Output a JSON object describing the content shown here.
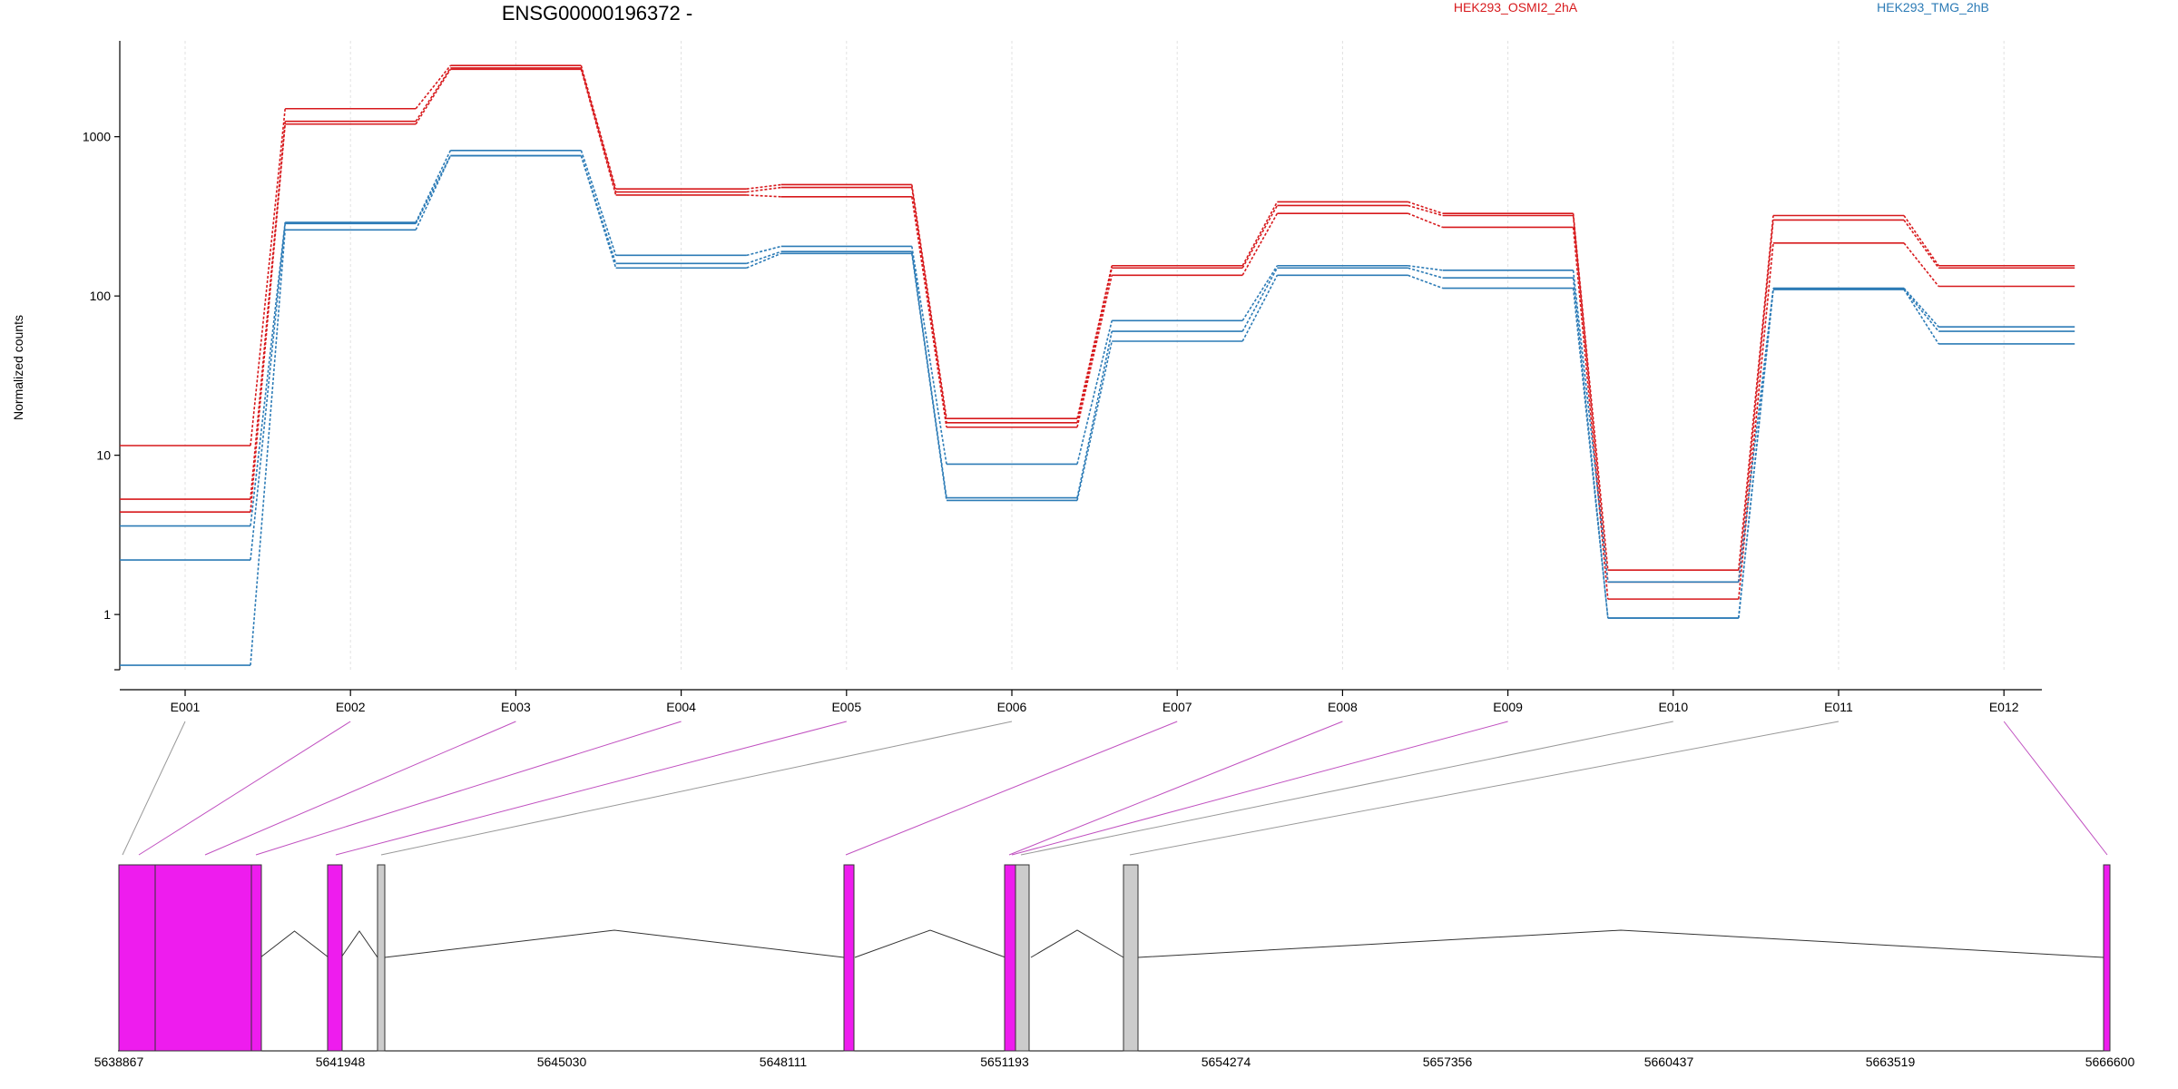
{
  "title": "ENSG00000196372 -",
  "ylabel": "Normalized counts",
  "legend": [
    {
      "label": "HEK293_OSMI2_2hA",
      "color": "#d7191c"
    },
    {
      "label": "HEK293_TMG_2hB",
      "color": "#2c7bb6"
    }
  ],
  "colors": {
    "exon_used": "#ee1cee",
    "exon_other": "#cccccc",
    "connector_used": "#c050c0",
    "connector_other": "#999999",
    "grid": "#e0e0e0"
  },
  "chart_data": {
    "type": "line",
    "scale": "log",
    "y_ticks": [
      1,
      10,
      100,
      1000
    ],
    "y_tick_labels": [
      "1",
      "10",
      "100",
      "1000"
    ],
    "ylim": [
      0.45,
      4000
    ],
    "categories": [
      "E001",
      "E002",
      "E003",
      "E004",
      "E005",
      "E006",
      "E007",
      "E008",
      "E009",
      "E010",
      "E011",
      "E012"
    ],
    "series": [
      {
        "group": "HEK293_OSMI2_2hA",
        "values": [
          11.5,
          1500,
          2800,
          470,
          500,
          17,
          155,
          390,
          330,
          1.9,
          320,
          155
        ]
      },
      {
        "group": "HEK293_OSMI2_2hA",
        "values": [
          5.3,
          1250,
          2700,
          450,
          480,
          16,
          150,
          370,
          320,
          1.6,
          300,
          150
        ]
      },
      {
        "group": "HEK293_OSMI2_2hA",
        "values": [
          4.4,
          1200,
          2650,
          430,
          420,
          15,
          135,
          330,
          270,
          1.25,
          215,
          115
        ]
      },
      {
        "group": "HEK293_TMG_2hB",
        "values": [
          3.6,
          290,
          820,
          180,
          205,
          8.8,
          70,
          155,
          145,
          1.6,
          112,
          64
        ]
      },
      {
        "group": "HEK293_TMG_2hB",
        "values": [
          2.2,
          285,
          760,
          160,
          190,
          5.4,
          60,
          150,
          130,
          0.95,
          110,
          60
        ]
      },
      {
        "group": "HEK293_TMG_2hB",
        "values": [
          0.48,
          260,
          760,
          150,
          185,
          5.2,
          52,
          135,
          112,
          0.95,
          110,
          50
        ]
      }
    ],
    "gene_model": {
      "tick_labels": [
        "5638867",
        "5641948",
        "5645030",
        "5648111",
        "5651193",
        "5654274",
        "5657356",
        "5660437",
        "5663519",
        "5666600"
      ],
      "exon_markers": [
        "",
        "",
        "",
        "",
        "",
        "",
        "",
        "",
        "",
        "",
        "",
        ""
      ]
    }
  }
}
